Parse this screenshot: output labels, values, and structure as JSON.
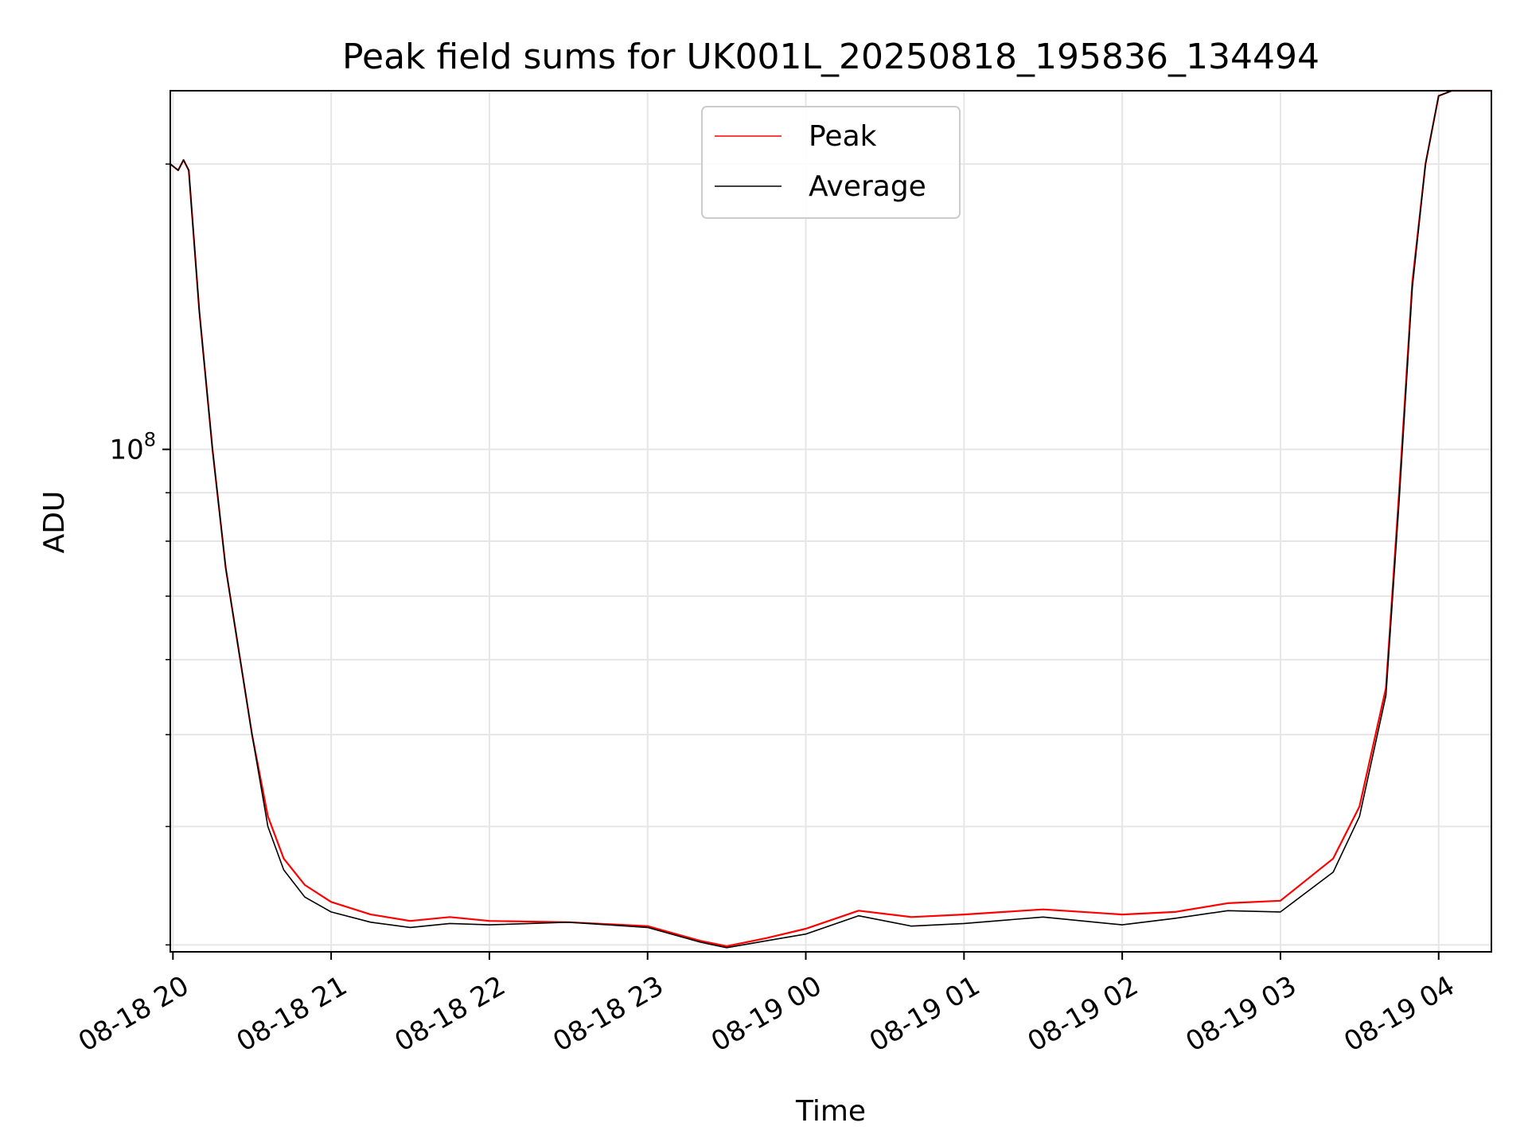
{
  "chart_data": {
    "type": "line",
    "title": "Peak field sums for UK001L_20250818_195836_134494",
    "xlabel": "Time",
    "ylabel": "ADU",
    "y_scale": "log",
    "xlim": [
      "2025-08-18 19:59",
      "2025-08-19 04:20"
    ],
    "ylim": [
      29500000,
      239000000
    ],
    "grid": true,
    "legend": {
      "placement": "upper-center",
      "entries": [
        "Peak",
        "Average"
      ]
    },
    "x_ticks": [
      {
        "t": "2025-08-18 20:00",
        "label": "08-18 20"
      },
      {
        "t": "2025-08-18 21:00",
        "label": "08-18 21"
      },
      {
        "t": "2025-08-18 22:00",
        "label": "08-18 22"
      },
      {
        "t": "2025-08-18 23:00",
        "label": "08-18 23"
      },
      {
        "t": "2025-08-19 00:00",
        "label": "08-19 00"
      },
      {
        "t": "2025-08-19 01:00",
        "label": "08-19 01"
      },
      {
        "t": "2025-08-19 02:00",
        "label": "08-19 02"
      },
      {
        "t": "2025-08-19 03:00",
        "label": "08-19 03"
      },
      {
        "t": "2025-08-19 04:00",
        "label": "08-19 04"
      }
    ],
    "y_major_ticks": [
      {
        "value": 100000000,
        "base": "10",
        "exponent": "8"
      }
    ],
    "y_minor_ticks": [
      30000000,
      40000000,
      50000000,
      60000000,
      70000000,
      80000000,
      90000000,
      200000000
    ],
    "series": [
      {
        "name": "Peak",
        "color": "#ff0000",
        "points": [
          [
            "2025-08-18 19:59",
            200000000
          ],
          [
            "2025-08-18 20:02",
            197000000
          ],
          [
            "2025-08-18 20:04",
            202000000
          ],
          [
            "2025-08-18 20:06",
            197000000
          ],
          [
            "2025-08-18 20:10",
            140000000
          ],
          [
            "2025-08-18 20:15",
            100000000
          ],
          [
            "2025-08-18 20:20",
            75000000
          ],
          [
            "2025-08-18 20:30",
            50000000
          ],
          [
            "2025-08-18 20:36",
            41000000
          ],
          [
            "2025-08-18 20:42",
            37000000
          ],
          [
            "2025-08-18 20:50",
            34700000
          ],
          [
            "2025-08-18 21:00",
            33300000
          ],
          [
            "2025-08-18 21:15",
            32300000
          ],
          [
            "2025-08-18 21:30",
            31800000
          ],
          [
            "2025-08-18 21:45",
            32100000
          ],
          [
            "2025-08-18 22:00",
            31800000
          ],
          [
            "2025-08-18 22:30",
            31700000
          ],
          [
            "2025-08-18 23:00",
            31400000
          ],
          [
            "2025-08-18 23:20",
            30300000
          ],
          [
            "2025-08-18 23:30",
            29900000
          ],
          [
            "2025-08-18 23:45",
            30500000
          ],
          [
            "2025-08-19 00:00",
            31200000
          ],
          [
            "2025-08-19 00:20",
            32600000
          ],
          [
            "2025-08-19 00:40",
            32100000
          ],
          [
            "2025-08-19 01:00",
            32300000
          ],
          [
            "2025-08-19 01:30",
            32700000
          ],
          [
            "2025-08-19 02:00",
            32300000
          ],
          [
            "2025-08-19 02:20",
            32500000
          ],
          [
            "2025-08-19 02:40",
            33200000
          ],
          [
            "2025-08-19 03:00",
            33400000
          ],
          [
            "2025-08-19 03:20",
            37000000
          ],
          [
            "2025-08-19 03:30",
            42000000
          ],
          [
            "2025-08-19 03:40",
            56000000
          ],
          [
            "2025-08-19 03:45",
            90000000
          ],
          [
            "2025-08-19 03:50",
            150000000
          ],
          [
            "2025-08-19 03:55",
            200000000
          ],
          [
            "2025-08-19 04:00",
            236000000
          ],
          [
            "2025-08-19 04:05",
            239000000
          ],
          [
            "2025-08-19 04:20",
            239000000
          ]
        ]
      },
      {
        "name": "Average",
        "color": "#000000",
        "points": [
          [
            "2025-08-18 19:59",
            200000000
          ],
          [
            "2025-08-18 20:02",
            197000000
          ],
          [
            "2025-08-18 20:04",
            202000000
          ],
          [
            "2025-08-18 20:06",
            197000000
          ],
          [
            "2025-08-18 20:10",
            140000000
          ],
          [
            "2025-08-18 20:15",
            100000000
          ],
          [
            "2025-08-18 20:20",
            75000000
          ],
          [
            "2025-08-18 20:30",
            50000000
          ],
          [
            "2025-08-18 20:36",
            40000000
          ],
          [
            "2025-08-18 20:42",
            36000000
          ],
          [
            "2025-08-18 20:50",
            33700000
          ],
          [
            "2025-08-18 21:00",
            32500000
          ],
          [
            "2025-08-18 21:15",
            31700000
          ],
          [
            "2025-08-18 21:30",
            31300000
          ],
          [
            "2025-08-18 21:45",
            31600000
          ],
          [
            "2025-08-18 22:00",
            31500000
          ],
          [
            "2025-08-18 22:30",
            31700000
          ],
          [
            "2025-08-18 23:00",
            31300000
          ],
          [
            "2025-08-18 23:20",
            30200000
          ],
          [
            "2025-08-18 23:30",
            29800000
          ],
          [
            "2025-08-18 23:45",
            30300000
          ],
          [
            "2025-08-19 00:00",
            30800000
          ],
          [
            "2025-08-19 00:20",
            32200000
          ],
          [
            "2025-08-19 00:40",
            31400000
          ],
          [
            "2025-08-19 01:00",
            31600000
          ],
          [
            "2025-08-19 01:30",
            32100000
          ],
          [
            "2025-08-19 02:00",
            31500000
          ],
          [
            "2025-08-19 02:20",
            32000000
          ],
          [
            "2025-08-19 02:40",
            32600000
          ],
          [
            "2025-08-19 03:00",
            32500000
          ],
          [
            "2025-08-19 03:20",
            35800000
          ],
          [
            "2025-08-19 03:30",
            41000000
          ],
          [
            "2025-08-19 03:40",
            55000000
          ],
          [
            "2025-08-19 03:45",
            88000000
          ],
          [
            "2025-08-19 03:50",
            148000000
          ],
          [
            "2025-08-19 03:55",
            200000000
          ],
          [
            "2025-08-19 04:00",
            236000000
          ],
          [
            "2025-08-19 04:05",
            239000000
          ],
          [
            "2025-08-19 04:20",
            239000000
          ]
        ]
      }
    ]
  }
}
